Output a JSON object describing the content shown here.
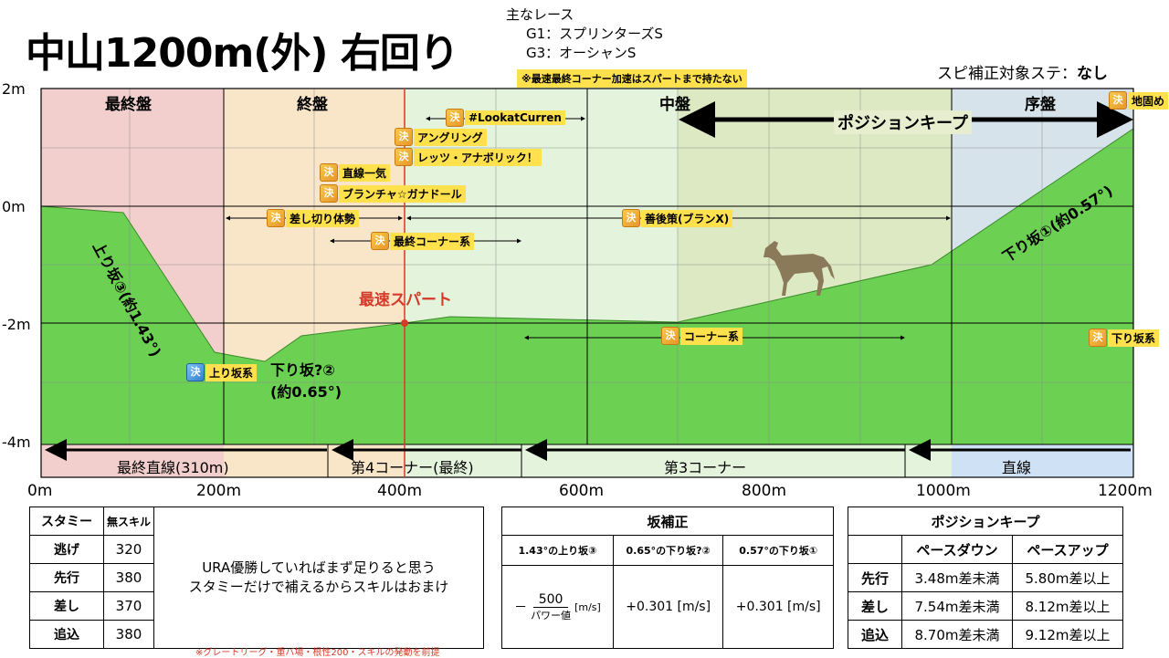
{
  "title": "中山1200m(外) 右回り",
  "races": {
    "heading": "主なレース",
    "g1": "G1：スプリンターズS",
    "g3": "G3：オーシャンS"
  },
  "note_top": "※最速最終コーナー加速はスパートまで持たない",
  "spi": {
    "label": "スピ補正対象ステ：",
    "value": "なし"
  },
  "y_ticks": [
    "2m",
    "0m",
    "-2m",
    "-4m"
  ],
  "x_ticks": [
    "0m",
    "200m",
    "400m",
    "600m",
    "800m",
    "1000m",
    "1200m"
  ],
  "phases": [
    "最終盤",
    "終盤",
    "中盤",
    "序盤"
  ],
  "position_keep_label": "ポジションキープ",
  "sections": [
    "最終直線(310m)",
    "第4コーナー(最終)",
    "第3コーナー",
    "直線"
  ],
  "slopes": {
    "up3": "上り坂③(約1.43°)",
    "down2a": "下り坂?②",
    "down2b": "(約0.65°)",
    "down1": "下り坂①(約0.57°)"
  },
  "spurt_label": "最速スパート",
  "skills": {
    "lookat": "#LookatCurren",
    "angling": "アングリング",
    "lets": "レッツ・アナボリック！",
    "chokusen": "直線一気",
    "blanche": "ブランチャ☆ガナドール",
    "sashi": "差し切り体勢",
    "zengo": "善後策(ブランX)",
    "final_corner": "最終コーナー系",
    "corner": "コーナー系",
    "up_slope": "上り坂系",
    "down_slope": "下り坂系",
    "jigatame": "地固め"
  },
  "skill_icon_char": "決",
  "stamina": {
    "header": [
      "スタミー",
      "無スキル"
    ],
    "rows": [
      {
        "style": "逃げ",
        "value": "320"
      },
      {
        "style": "先行",
        "value": "380"
      },
      {
        "style": "差し",
        "value": "370"
      },
      {
        "style": "追込",
        "value": "380"
      }
    ],
    "message_line1": "URA優勝していればまず足りると思う",
    "message_line2": "スタミーだけで補えるからスキルはおまけ"
  },
  "slope_table": {
    "title": "坂補正",
    "cols": [
      "1.43°の上り坂③",
      "0.65°の下り坂?②",
      "0.57°の下り坂①"
    ],
    "formula_prefix": "－",
    "formula_num": "500",
    "formula_den": "パワー値",
    "formula_unit": "[m/s]",
    "val2": "+0.301 [m/s]",
    "val3": "+0.301 [m/s]"
  },
  "poskeep_table": {
    "title": "ポジションキープ",
    "cols": [
      "ペースダウン",
      "ペースアップ"
    ],
    "rows": [
      {
        "style": "先行",
        "down": "3.48m差未満",
        "up": "5.80m差以上"
      },
      {
        "style": "差し",
        "down": "7.54m差未満",
        "up": "8.12m差以上"
      },
      {
        "style": "追込",
        "down": "8.70m差未満",
        "up": "9.12m差以上"
      }
    ]
  },
  "footnote": "※グレートリーグ・重バ場・根性200・スキルの発動を前提",
  "colors": {
    "final_phase": "#f2cfcd",
    "end_phase": "#f9e6c9",
    "mid_phase": "#e3f3dc",
    "early_phase": "#d6e3ea",
    "ground": "#6cd153",
    "spurt": "#d43a2a",
    "tag": "#ffe04d"
  }
}
